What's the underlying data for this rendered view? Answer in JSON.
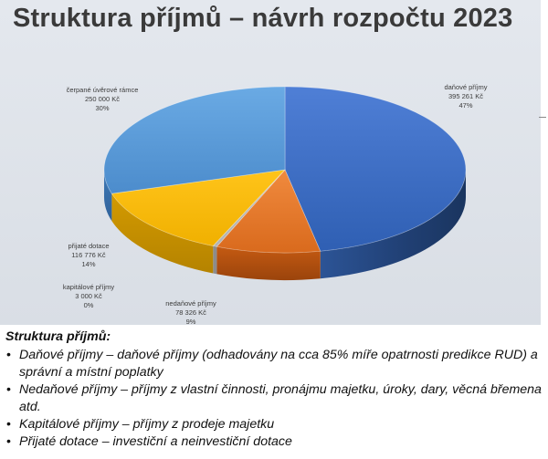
{
  "chart_data": {
    "type": "pie",
    "title": "Struktura příjmů – návrh rozpočtu 2023",
    "slices": [
      {
        "name": "daňové příjmy",
        "value_text": "395 261 Kč",
        "value": 395261,
        "percent_text": "47%",
        "percent": 47,
        "color": "#4472c4"
      },
      {
        "name": "nedaňové příjmy",
        "value_text": "78 326 Kč",
        "value": 78326,
        "percent_text": "9%",
        "percent": 9,
        "color": "#ed7d31"
      },
      {
        "name": "kapitálové příjmy",
        "value_text": "3 000 Kč",
        "value": 3000,
        "percent_text": "0%",
        "percent": 0,
        "color": "#a5a5a5"
      },
      {
        "name": "přijaté dotace",
        "value_text": "116 776 Kč",
        "value": 116776,
        "percent_text": "14%",
        "percent": 14,
        "color": "#ffc000"
      },
      {
        "name": "čerpané úvěrové rámce",
        "value_text": "250 000 Kč",
        "value": 250000,
        "percent_text": "30%",
        "percent": 30,
        "color": "#5b9bd5"
      }
    ]
  },
  "notes": {
    "heading": "Struktura příjmů:",
    "items": [
      "Daňové příjmy – daňové příjmy (odhadovány na cca 85% míře opatrnosti predikce RUD) a správní a místní poplatky",
      "Nedaňové příjmy – příjmy z vlastní činnosti, pronájmu majetku, úroky, dary, věcná břemena atd.",
      "Kapitálové příjmy – příjmy z prodeje majetku",
      "Přijaté dotace – investiční a neinvestiční dotace"
    ]
  }
}
